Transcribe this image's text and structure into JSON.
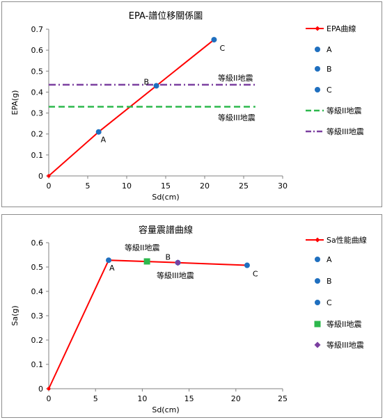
{
  "chart_data": [
    {
      "type": "line",
      "title": "EPA-譜位移關係圖",
      "xlabel": "Sd(cm)",
      "ylabel": "EPA(g)",
      "xlim": [
        0,
        30
      ],
      "ylim": [
        0,
        0.7
      ],
      "xticks": [
        "0",
        "5",
        "10",
        "15",
        "20",
        "25",
        "30"
      ],
      "yticks": [
        "0",
        "0.1",
        "0.2",
        "0.3",
        "0.4",
        "0.5",
        "0.6",
        "0.7"
      ],
      "grid": false,
      "legend_position": "right",
      "colors": {
        "curve": "#ff0000",
        "points": "#1f6fbf",
        "level2": "#2db84d",
        "level3": "#7b3fa0"
      },
      "series": [
        {
          "name": "EPA曲線",
          "style": "line-marker",
          "x": [
            0,
            6.4,
            13.8,
            21.2
          ],
          "y": [
            0,
            0.21,
            0.43,
            0.65
          ]
        },
        {
          "name": "A",
          "style": "point",
          "x": [
            6.4
          ],
          "y": [
            0.21
          ],
          "label": "A"
        },
        {
          "name": "B",
          "style": "point",
          "x": [
            13.8
          ],
          "y": [
            0.43
          ],
          "label": "B"
        },
        {
          "name": "C",
          "style": "point",
          "x": [
            21.2
          ],
          "y": [
            0.65
          ],
          "label": "C"
        },
        {
          "name": "等級II地震",
          "style": "dashed",
          "x": [
            0,
            26.5
          ],
          "y": [
            0.33,
            0.33
          ],
          "annotation": "等級II地震"
        },
        {
          "name": "等級III地震",
          "style": "dashdot",
          "x": [
            0,
            26.5
          ],
          "y": [
            0.435,
            0.435
          ],
          "annotation": "等級III地震"
        }
      ]
    },
    {
      "type": "line",
      "title": "容量震譜曲線",
      "xlabel": "Sd(cm)",
      "ylabel": "Sa(g)",
      "xlim": [
        0,
        25
      ],
      "ylim": [
        0,
        0.6
      ],
      "xticks": [
        "0",
        "5",
        "10",
        "15",
        "20",
        "25"
      ],
      "yticks": [
        "0",
        "0.1",
        "0.2",
        "0.3",
        "0.4",
        "0.5",
        "0.6"
      ],
      "grid": false,
      "legend_position": "right",
      "colors": {
        "curve": "#ff0000",
        "points": "#1f6fbf",
        "level2": "#2db84d",
        "level3": "#7b3fa0"
      },
      "series": [
        {
          "name": "Sa性能曲線",
          "style": "line-marker",
          "x": [
            0,
            6.4,
            13.8,
            21.2
          ],
          "y": [
            0,
            0.528,
            0.518,
            0.507
          ]
        },
        {
          "name": "A",
          "style": "point",
          "x": [
            6.4
          ],
          "y": [
            0.528
          ],
          "label": "A"
        },
        {
          "name": "B",
          "style": "point",
          "x": [
            13.8
          ],
          "y": [
            0.518
          ],
          "label": "B"
        },
        {
          "name": "C",
          "style": "point",
          "x": [
            21.2
          ],
          "y": [
            0.507
          ],
          "label": "C"
        },
        {
          "name": "等級II地震",
          "style": "square",
          "x": [
            10.5
          ],
          "y": [
            0.523
          ],
          "annotation": "等級II地震"
        },
        {
          "name": "等級III地震",
          "style": "diamond",
          "x": [
            13.8
          ],
          "y": [
            0.518
          ],
          "annotation": "等級III地震"
        }
      ]
    }
  ]
}
